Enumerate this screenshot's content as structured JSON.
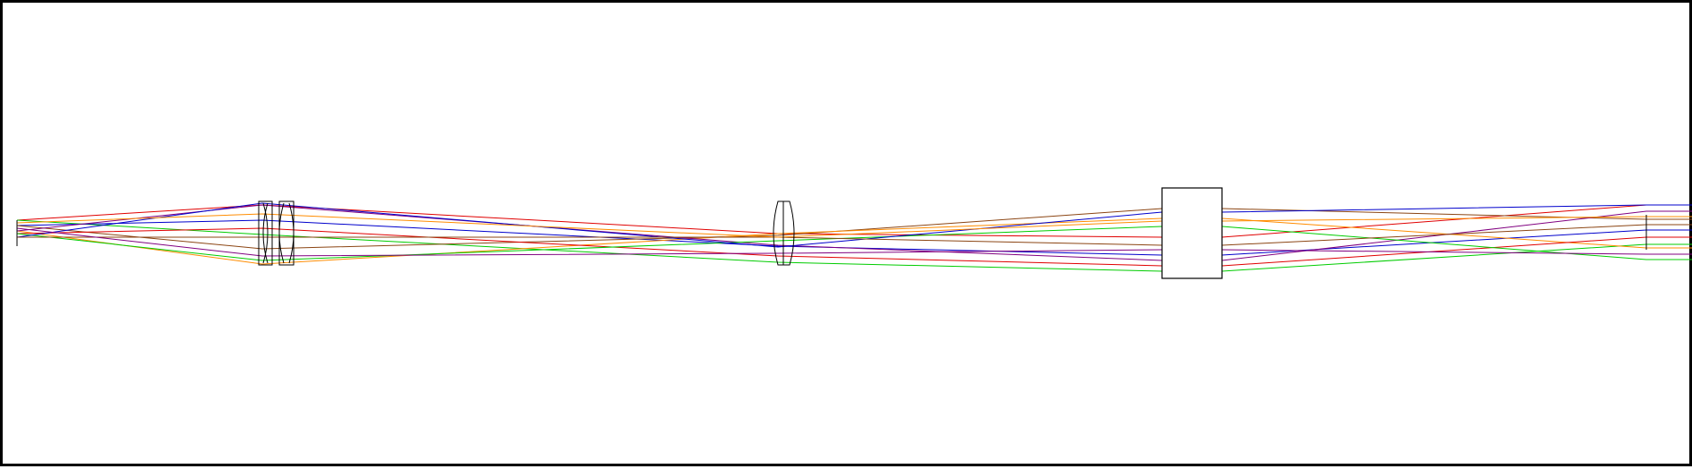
{
  "diagram": {
    "type": "optical-layout",
    "labels": [],
    "colors": {
      "frame": "#000000",
      "background": "#ffffff",
      "element_outline": "#000000"
    },
    "elements": [
      {
        "name": "object-plane",
        "kind": "object"
      },
      {
        "name": "lens-group-1-element-1",
        "kind": "lens"
      },
      {
        "name": "lens-group-1-element-2",
        "kind": "lens"
      },
      {
        "name": "lens-2",
        "kind": "lens"
      },
      {
        "name": "beam-splitter-block",
        "kind": "prism"
      },
      {
        "name": "image-plane",
        "kind": "image"
      }
    ],
    "ray_colors": [
      {
        "name": "red",
        "color": "#e00000"
      },
      {
        "name": "green",
        "color": "#00cc00"
      },
      {
        "name": "blue",
        "color": "#0000cc"
      },
      {
        "name": "brown",
        "color": "#8b4513"
      },
      {
        "name": "orange",
        "color": "#ff8c00"
      },
      {
        "name": "purple",
        "color": "#800080"
      }
    ]
  }
}
